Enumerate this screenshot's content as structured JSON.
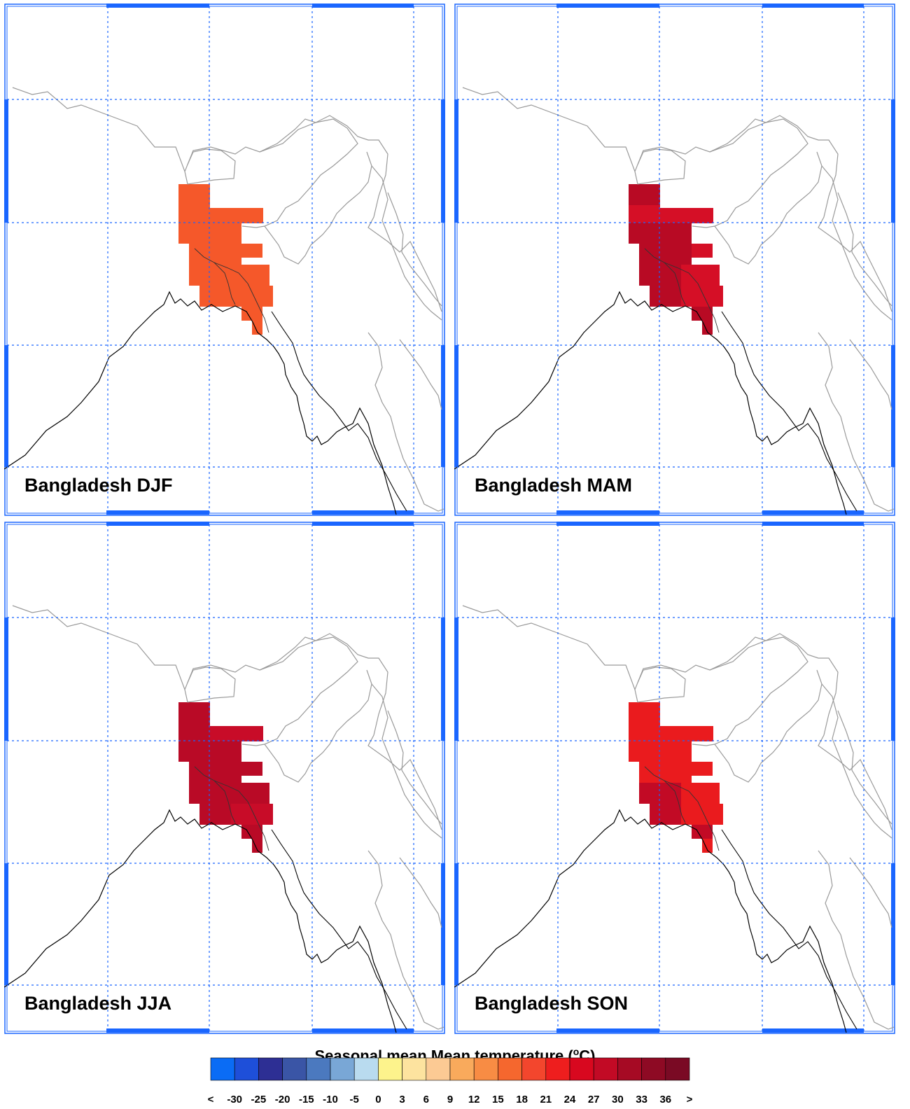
{
  "panels": [
    {
      "label": "Bangladesh DJF",
      "season": "DJF"
    },
    {
      "label": "Bangladesh MAM",
      "season": "MAM"
    },
    {
      "label": "Bangladesh JJA",
      "season": "JJA"
    },
    {
      "label": "Bangladesh SON",
      "season": "SON"
    }
  ],
  "colorbar": {
    "title_pre": "Seasonal mean Mean temperature (",
    "title_sup": "o",
    "title_post": "C)",
    "colors": [
      "#0a6cf5",
      "#1e4fd9",
      "#2d2f94",
      "#3a55a6",
      "#4b79bf",
      "#79a7d6",
      "#b9dbef",
      "#fdf38c",
      "#fde39f",
      "#fcca94",
      "#f9aa5c",
      "#f88c44",
      "#f5672e",
      "#f3462d",
      "#ee1e1e",
      "#d8081f",
      "#c20a25",
      "#a60a24",
      "#8e0a24",
      "#7a0a24"
    ],
    "ticks": [
      "<",
      "-30",
      "-25",
      "-20",
      "-15",
      "-10",
      "-5",
      "0",
      "3",
      "6",
      "9",
      "12",
      "15",
      "18",
      "21",
      "24",
      "27",
      "30",
      "33",
      "36",
      ">"
    ]
  },
  "colors": {
    "gridline": "#1a66ff",
    "frame": "#1a66ff",
    "border": "#9a9a9a",
    "coast": "#000000",
    "djf_fill": "#f5582a",
    "mam_fill": "#d50f26",
    "jja_fill": "#c80c28",
    "son_fill": "#ea1b1e"
  }
}
